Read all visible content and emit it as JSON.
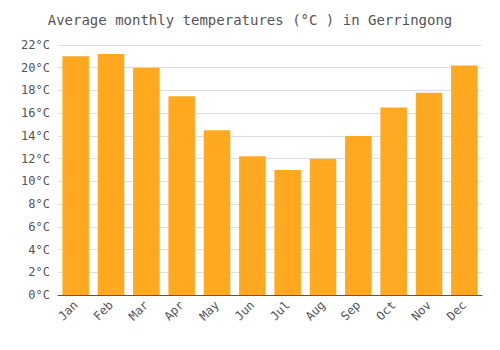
{
  "chart_data": {
    "type": "bar",
    "title": "Average monthly temperatures (°C ) in Gerringong",
    "categories": [
      "Jan",
      "Feb",
      "Mar",
      "Apr",
      "May",
      "Jun",
      "Jul",
      "Aug",
      "Sep",
      "Oct",
      "Nov",
      "Dec"
    ],
    "values": [
      21.0,
      21.2,
      20.0,
      17.5,
      14.5,
      12.2,
      11.0,
      12.0,
      14.0,
      16.5,
      17.8,
      20.2
    ],
    "color": "#FFA820",
    "ylim": [
      0,
      22
    ],
    "yticks": [
      {
        "value": 0,
        "label": "0°C"
      },
      {
        "value": 2,
        "label": "2°C"
      },
      {
        "value": 4,
        "label": "4°C"
      },
      {
        "value": 6,
        "label": "6°C"
      },
      {
        "value": 8,
        "label": "8°C"
      },
      {
        "value": 10,
        "label": "10°C"
      },
      {
        "value": 12,
        "label": "12°C"
      },
      {
        "value": 14,
        "label": "14°C"
      },
      {
        "value": 16,
        "label": "16°C"
      },
      {
        "value": 18,
        "label": "18°C"
      },
      {
        "value": 20,
        "label": "20°C"
      },
      {
        "value": 22,
        "label": "22°C"
      }
    ],
    "grid": true
  }
}
